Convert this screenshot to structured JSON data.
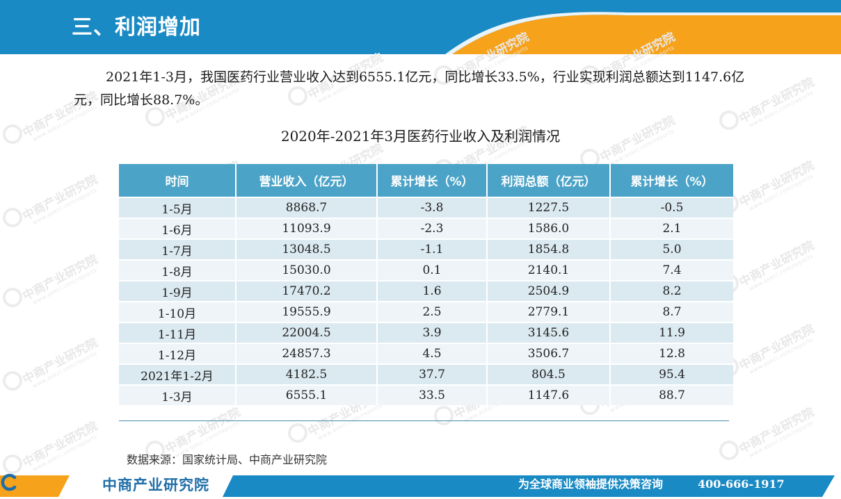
{
  "header": {
    "title": "三、利润增加"
  },
  "intro": {
    "text": "2021年1-3月，我国医药行业营业收入达到6555.1亿元，同比增长33.5%，行业实现利润总额达到1147.6亿元，同比增长88.7%。"
  },
  "table": {
    "title": "2020年-2021年3月医药行业收入及利润情况",
    "headers": [
      "时间",
      "营业收入（亿元）",
      "累计增长（%）",
      "利润总额（亿元）",
      "累计增长（%）"
    ],
    "rows": [
      [
        "1-5月",
        "8868.7",
        "-3.8",
        "1227.5",
        "-0.5"
      ],
      [
        "1-6月",
        "11093.9",
        "-2.3",
        "1586.0",
        "2.1"
      ],
      [
        "1-7月",
        "13048.5",
        "-1.1",
        "1854.8",
        "5.0"
      ],
      [
        "1-8月",
        "15030.0",
        "0.1",
        "2140.1",
        "7.4"
      ],
      [
        "1-9月",
        "17470.2",
        "1.6",
        "2504.9",
        "8.2"
      ],
      [
        "1-10月",
        "19555.9",
        "2.5",
        "2779.1",
        "8.7"
      ],
      [
        "1-11月",
        "22004.5",
        "3.9",
        "3145.6",
        "11.9"
      ],
      [
        "1-12月",
        "24857.3",
        "4.5",
        "3506.7",
        "12.8"
      ],
      [
        "2021年1-2月",
        "4182.5",
        "37.7",
        "804.5",
        "95.4"
      ],
      [
        "1-3月",
        "6555.1",
        "33.5",
        "1147.6",
        "88.7"
      ]
    ]
  },
  "source": {
    "text": "数据来源：国家统计局、中商产业研究院"
  },
  "watermark": {
    "name": "中商产业研究院",
    "url": "www.askci.com/reports"
  },
  "footer": {
    "brand": "中商产业研究院",
    "slogan": "为全球商业领袖提供决策咨询",
    "phone": "400-666-1917"
  },
  "colors": {
    "header_blue": "#1a8ac4",
    "accent_orange": "#f7a21b",
    "table_header": "#4ba3c7",
    "row_dark": "#dbe9f1",
    "row_light": "#eef4f8",
    "brand_blue": "#1f6ea8"
  },
  "icons": {
    "brand_logo": "askci-c-logo-icon"
  }
}
